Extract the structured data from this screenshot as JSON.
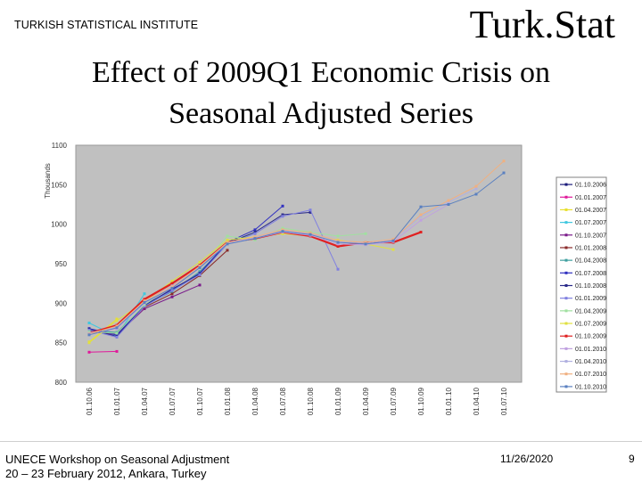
{
  "header": {
    "org": "TURKISH STATISTICAL INSTITUTE",
    "brand": "Turk.Stat",
    "title_line1": "Effect of 2009Q1 Economic Crisis on",
    "title_line2": "Seasonal Adjusted Series"
  },
  "footer": {
    "conference_line1": "UNECE Workshop on Seasonal Adjustment",
    "conference_line2": "20 – 23 February 2012, Ankara, Turkey",
    "date": "11/26/2020",
    "page": "9"
  },
  "chart_data": {
    "type": "line",
    "title": "",
    "xlabel": "",
    "ylabel": "Thousands",
    "ylim": [
      800,
      1100
    ],
    "yticks": [
      800,
      850,
      900,
      950,
      1000,
      1050,
      1100
    ],
    "grid": false,
    "plot_background": "#c0c0c0",
    "legend_position": "right",
    "categories": [
      "01.10.06",
      "01.01.07",
      "01.04.07",
      "01.07.07",
      "01.10.07",
      "01.01.08",
      "01.04.08",
      "01.07.08",
      "01.10.08",
      "01.01.09",
      "01.04.09",
      "01.07.09",
      "01.10.09",
      "01.01.10",
      "01.04.10",
      "01.07.10"
    ],
    "series": [
      {
        "name": "01.10.2006",
        "color": "#1a1a7a",
        "values": [
          null,
          null,
          null,
          null,
          null,
          null,
          null,
          null,
          null,
          null,
          null,
          null,
          null,
          null,
          null,
          null
        ]
      },
      {
        "name": "01.01.2007",
        "color": "#e0189a",
        "values": [
          838,
          839,
          null,
          null,
          null,
          null,
          null,
          null,
          null,
          null,
          null,
          null,
          null,
          null,
          null,
          null
        ]
      },
      {
        "name": "01.04.2007",
        "color": "#e8e030",
        "values": [
          851,
          880,
          null,
          null,
          null,
          null,
          null,
          null,
          null,
          null,
          null,
          null,
          null,
          null,
          null,
          null
        ]
      },
      {
        "name": "01.07.2007",
        "color": "#40c8e0",
        "values": [
          875,
          858,
          912,
          null,
          null,
          null,
          null,
          null,
          null,
          null,
          null,
          null,
          null,
          null,
          null,
          null
        ]
      },
      {
        "name": "01.10.2007",
        "color": "#7a1a8a",
        "values": [
          865,
          860,
          893,
          908,
          923,
          null,
          null,
          null,
          null,
          null,
          null,
          null,
          null,
          null,
          null,
          null
        ]
      },
      {
        "name": "01.01.2008",
        "color": "#8a2a2a",
        "values": [
          863,
          862,
          895,
          912,
          935,
          967,
          null,
          null,
          null,
          null,
          null,
          null,
          null,
          null,
          null,
          null
        ]
      },
      {
        "name": "01.04.2008",
        "color": "#40a0a0",
        "values": [
          866,
          863,
          897,
          915,
          940,
          975,
          990,
          null,
          null,
          null,
          null,
          null,
          null,
          null,
          null,
          null
        ]
      },
      {
        "name": "01.07.2008",
        "color": "#3030c0",
        "values": [
          868,
          860,
          898,
          917,
          938,
          977,
          993,
          1023,
          null,
          null,
          null,
          null,
          null,
          null,
          null,
          null
        ]
      },
      {
        "name": "01.10.2008",
        "color": "#2a2a8a",
        "values": [
          867,
          858,
          897,
          918,
          937,
          976,
          990,
          1012,
          1015,
          null,
          null,
          null,
          null,
          null,
          null,
          null
        ]
      },
      {
        "name": "01.01.2009",
        "color": "#8080e0",
        "values": [
          866,
          857,
          896,
          916,
          936,
          975,
          988,
          1010,
          1018,
          943,
          null,
          null,
          null,
          null,
          null,
          null
        ]
      },
      {
        "name": "01.04.2009",
        "color": "#a0e0a0",
        "values": [
          864,
          862,
          898,
          922,
          945,
          985,
          980,
          995,
          990,
          985,
          988,
          null,
          null,
          null,
          null,
          null
        ]
      },
      {
        "name": "01.07.2009",
        "color": "#e0e040",
        "values": [
          850,
          878,
          902,
          928,
          952,
          980,
          984,
          988,
          985,
          980,
          975,
          968,
          null,
          null,
          null,
          null
        ]
      },
      {
        "name": "01.10.2009",
        "color": "#e02020",
        "values": [
          862,
          872,
          905,
          925,
          948,
          977,
          982,
          990,
          985,
          972,
          977,
          977,
          990,
          null,
          null,
          null
        ]
      },
      {
        "name": "01.01.2010",
        "color": "#c0a0e0",
        "values": [
          860,
          868,
          900,
          920,
          945,
          975,
          982,
          990,
          986,
          975,
          974,
          978,
          1005,
          1025,
          null,
          null
        ]
      },
      {
        "name": "01.04.2010",
        "color": "#b0b0e0",
        "values": [
          862,
          870,
          902,
          922,
          946,
          976,
          983,
          992,
          988,
          978,
          976,
          980,
          1010,
          1028,
          1045,
          null
        ]
      },
      {
        "name": "01.07.2010",
        "color": "#f0b080",
        "values": [
          861,
          871,
          903,
          921,
          947,
          977,
          984,
          993,
          989,
          979,
          977,
          981,
          1012,
          1030,
          1048,
          1080
        ]
      },
      {
        "name": "01.10.2010",
        "color": "#5a80c0",
        "values": [
          860,
          869,
          901,
          919,
          945,
          975,
          982,
          991,
          987,
          977,
          975,
          979,
          1022,
          1025,
          1038,
          1065
        ]
      }
    ]
  }
}
